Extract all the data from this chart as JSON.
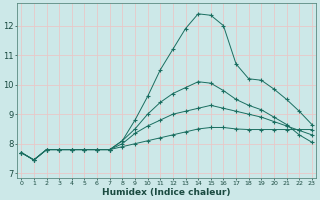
{
  "xlabel": "Humidex (Indice chaleur)",
  "bg_color": "#cce8e8",
  "grid_color": "#e8c8c8",
  "line_color": "#1a6e60",
  "x_ticks": [
    0,
    1,
    2,
    3,
    4,
    5,
    6,
    7,
    8,
    9,
    10,
    11,
    12,
    13,
    14,
    15,
    16,
    17,
    18,
    19,
    20,
    21,
    22,
    23
  ],
  "y_ticks": [
    7,
    8,
    9,
    10,
    11,
    12
  ],
  "xlim": [
    -0.3,
    23.3
  ],
  "ylim": [
    6.85,
    12.75
  ],
  "lines": [
    {
      "x": [
        0,
        1,
        2,
        3,
        4,
        5,
        6,
        7,
        8,
        9,
        10,
        11,
        12,
        13,
        14,
        15,
        16,
        17,
        18,
        19,
        20,
        21,
        22,
        23
      ],
      "y": [
        7.7,
        7.45,
        7.8,
        7.8,
        7.8,
        7.8,
        7.8,
        7.8,
        8.1,
        8.8,
        9.6,
        10.5,
        11.2,
        11.9,
        12.4,
        12.35,
        12.0,
        10.7,
        10.2,
        10.15,
        9.85,
        9.5,
        9.1,
        8.65
      ]
    },
    {
      "x": [
        0,
        1,
        2,
        3,
        4,
        5,
        6,
        7,
        8,
        9,
        10,
        11,
        12,
        13,
        14,
        15,
        16,
        17,
        18,
        19,
        20,
        21,
        22,
        23
      ],
      "y": [
        7.7,
        7.45,
        7.8,
        7.8,
        7.8,
        7.8,
        7.8,
        7.8,
        8.1,
        8.5,
        9.0,
        9.4,
        9.7,
        9.9,
        10.1,
        10.05,
        9.8,
        9.5,
        9.3,
        9.15,
        8.9,
        8.65,
        8.3,
        8.05
      ]
    },
    {
      "x": [
        0,
        1,
        2,
        3,
        4,
        5,
        6,
        7,
        8,
        9,
        10,
        11,
        12,
        13,
        14,
        15,
        16,
        17,
        18,
        19,
        20,
        21,
        22,
        23
      ],
      "y": [
        7.7,
        7.45,
        7.8,
        7.8,
        7.8,
        7.8,
        7.8,
        7.8,
        8.0,
        8.35,
        8.6,
        8.8,
        9.0,
        9.1,
        9.2,
        9.3,
        9.2,
        9.1,
        9.0,
        8.9,
        8.75,
        8.6,
        8.45,
        8.3
      ]
    },
    {
      "x": [
        0,
        1,
        2,
        3,
        4,
        5,
        6,
        7,
        8,
        9,
        10,
        11,
        12,
        13,
        14,
        15,
        16,
        17,
        18,
        19,
        20,
        21,
        22,
        23
      ],
      "y": [
        7.7,
        7.45,
        7.8,
        7.8,
        7.8,
        7.8,
        7.8,
        7.8,
        7.9,
        8.0,
        8.1,
        8.2,
        8.3,
        8.4,
        8.5,
        8.55,
        8.55,
        8.5,
        8.48,
        8.48,
        8.48,
        8.48,
        8.48,
        8.48
      ]
    }
  ]
}
